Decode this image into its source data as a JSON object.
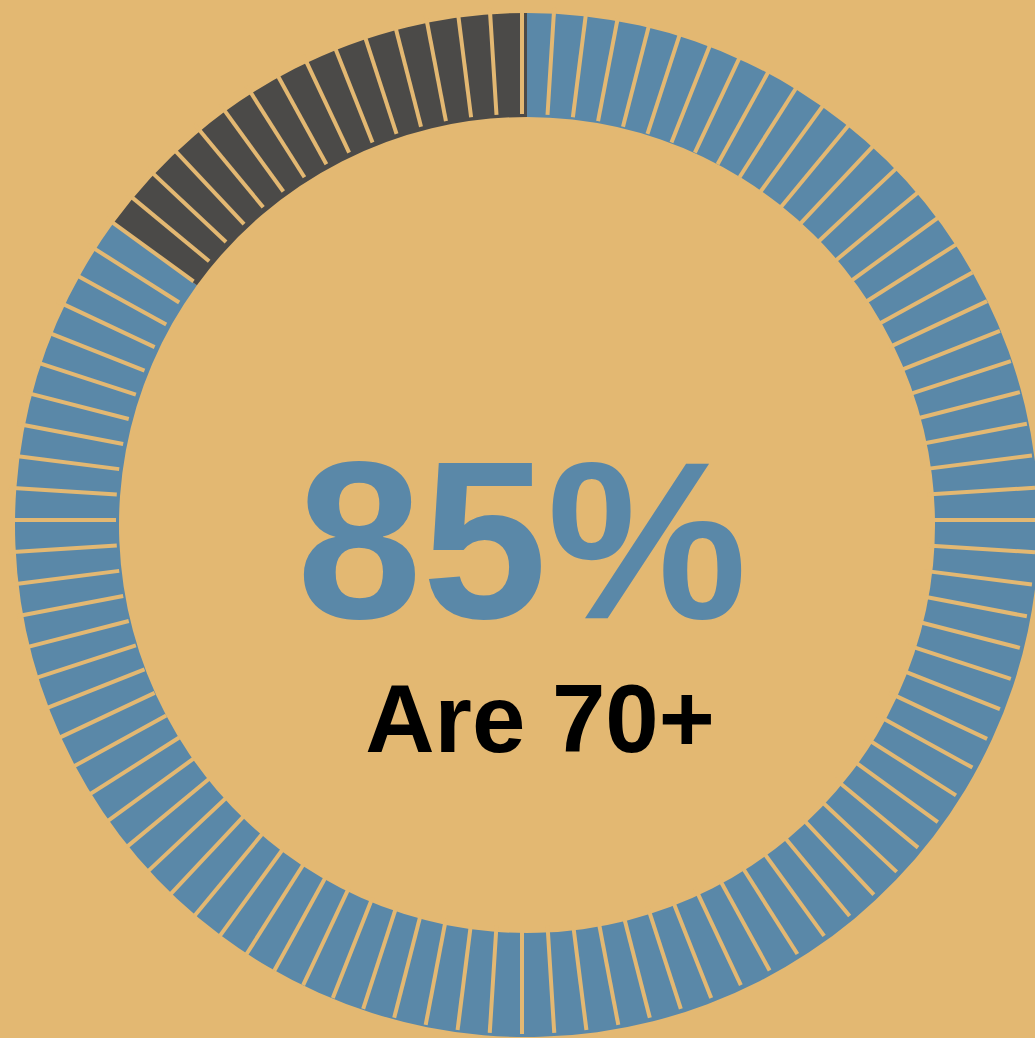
{
  "chart_data": {
    "type": "donut",
    "categories": [
      "Are 70+",
      null
    ],
    "values": [
      85,
      15
    ],
    "colors": [
      "#5a88a8",
      "#4b4a48"
    ],
    "value_labels": [
      "85%",
      null
    ]
  }
}
